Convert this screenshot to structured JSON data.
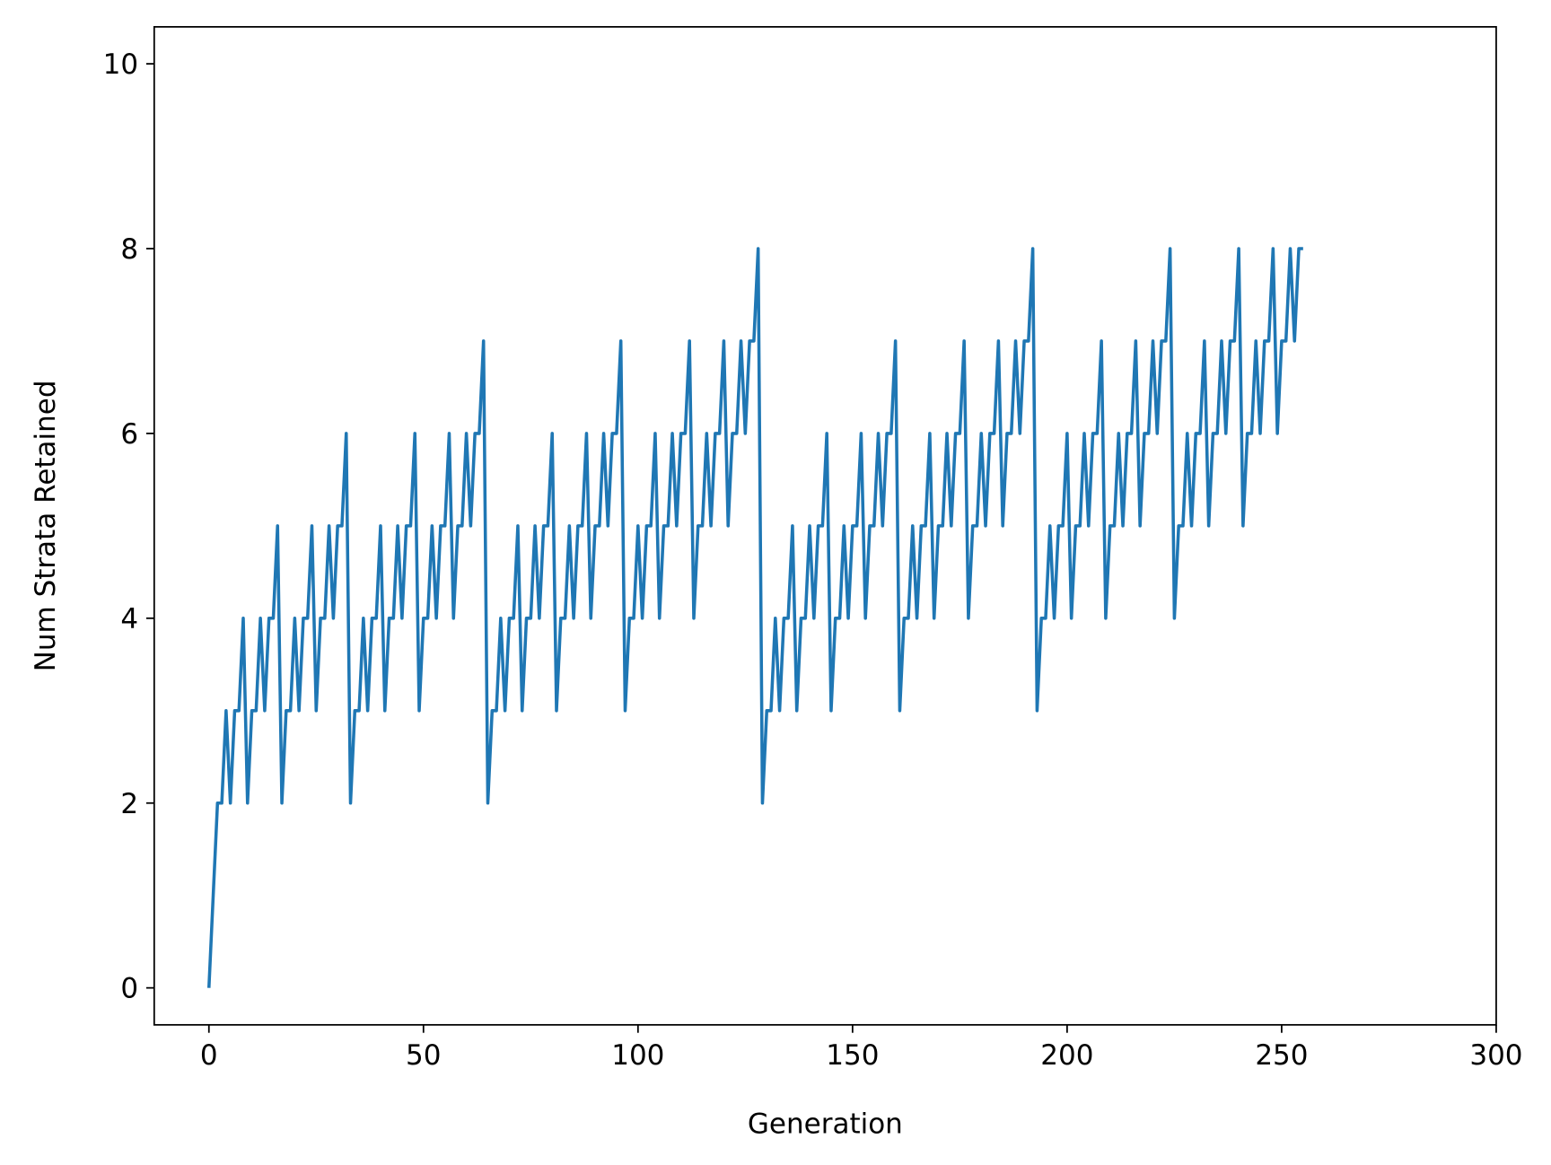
{
  "chart_data": {
    "type": "line",
    "xlabel": "Generation",
    "ylabel": "Num Strata Retained",
    "color": "#1f77b4",
    "xlim": [
      -12.75,
      300
    ],
    "ylim": [
      -0.4,
      10.4
    ],
    "xticks": [
      0,
      50,
      100,
      150,
      200,
      250,
      300
    ],
    "yticks": [
      0,
      2,
      4,
      6,
      8,
      10
    ],
    "x": [
      0,
      1,
      2,
      3,
      4,
      5,
      6,
      7,
      8,
      9,
      10,
      11,
      12,
      13,
      14,
      15,
      16,
      17,
      18,
      19,
      20,
      21,
      22,
      23,
      24,
      25,
      26,
      27,
      28,
      29,
      30,
      31,
      32,
      33,
      34,
      35,
      36,
      37,
      38,
      39,
      40,
      41,
      42,
      43,
      44,
      45,
      46,
      47,
      48,
      49,
      50,
      51,
      52,
      53,
      54,
      55,
      56,
      57,
      58,
      59,
      60,
      61,
      62,
      63,
      64,
      65,
      66,
      67,
      68,
      69,
      70,
      71,
      72,
      73,
      74,
      75,
      76,
      77,
      78,
      79,
      80,
      81,
      82,
      83,
      84,
      85,
      86,
      87,
      88,
      89,
      90,
      91,
      92,
      93,
      94,
      95,
      96,
      97,
      98,
      99,
      100,
      101,
      102,
      103,
      104,
      105,
      106,
      107,
      108,
      109,
      110,
      111,
      112,
      113,
      114,
      115,
      116,
      117,
      118,
      119,
      120,
      121,
      122,
      123,
      124,
      125,
      126,
      127,
      128,
      129,
      130,
      131,
      132,
      133,
      134,
      135,
      136,
      137,
      138,
      139,
      140,
      141,
      142,
      143,
      144,
      145,
      146,
      147,
      148,
      149,
      150,
      151,
      152,
      153,
      154,
      155,
      156,
      157,
      158,
      159,
      160,
      161,
      162,
      163,
      164,
      165,
      166,
      167,
      168,
      169,
      170,
      171,
      172,
      173,
      174,
      175,
      176,
      177,
      178,
      179,
      180,
      181,
      182,
      183,
      184,
      185,
      186,
      187,
      188,
      189,
      190,
      191,
      192,
      193,
      194,
      195,
      196,
      197,
      198,
      199,
      200,
      201,
      202,
      203,
      204,
      205,
      206,
      207,
      208,
      209,
      210,
      211,
      212,
      213,
      214,
      215,
      216,
      217,
      218,
      219,
      220,
      221,
      222,
      223,
      224,
      225,
      226,
      227,
      228,
      229,
      230,
      231,
      232,
      233,
      234,
      235,
      236,
      237,
      238,
      239,
      240,
      241,
      242,
      243,
      244,
      245,
      246,
      247,
      248,
      249,
      250,
      251,
      252,
      253,
      254,
      255
    ],
    "values": [
      0,
      1,
      2,
      2,
      3,
      2,
      3,
      3,
      4,
      2,
      3,
      3,
      4,
      3,
      4,
      4,
      5,
      2,
      3,
      3,
      4,
      3,
      4,
      4,
      5,
      3,
      4,
      4,
      5,
      4,
      5,
      5,
      6,
      2,
      3,
      3,
      4,
      3,
      4,
      4,
      5,
      3,
      4,
      4,
      5,
      4,
      5,
      5,
      6,
      3,
      4,
      4,
      5,
      4,
      5,
      5,
      6,
      4,
      5,
      5,
      6,
      5,
      6,
      6,
      7,
      2,
      3,
      3,
      4,
      3,
      4,
      4,
      5,
      3,
      4,
      4,
      5,
      4,
      5,
      5,
      6,
      3,
      4,
      4,
      5,
      4,
      5,
      5,
      6,
      4,
      5,
      5,
      6,
      5,
      6,
      6,
      7,
      3,
      4,
      4,
      5,
      4,
      5,
      5,
      6,
      4,
      5,
      5,
      6,
      5,
      6,
      6,
      7,
      4,
      5,
      5,
      6,
      5,
      6,
      6,
      7,
      5,
      6,
      6,
      7,
      6,
      7,
      7,
      8,
      2,
      3,
      3,
      4,
      3,
      4,
      4,
      5,
      3,
      4,
      4,
      5,
      4,
      5,
      5,
      6,
      3,
      4,
      4,
      5,
      4,
      5,
      5,
      6,
      4,
      5,
      5,
      6,
      5,
      6,
      6,
      7,
      3,
      4,
      4,
      5,
      4,
      5,
      5,
      6,
      4,
      5,
      5,
      6,
      5,
      6,
      6,
      7,
      4,
      5,
      5,
      6,
      5,
      6,
      6,
      7,
      5,
      6,
      6,
      7,
      6,
      7,
      7,
      8,
      3,
      4,
      4,
      5,
      4,
      5,
      5,
      6,
      4,
      5,
      5,
      6,
      5,
      6,
      6,
      7,
      4,
      5,
      5,
      6,
      5,
      6,
      6,
      7,
      5,
      6,
      6,
      7,
      6,
      7,
      7,
      8,
      4,
      5,
      5,
      6,
      5,
      6,
      6,
      7,
      5,
      6,
      6,
      7,
      6,
      7,
      7,
      8,
      5,
      6,
      6,
      7,
      6,
      7,
      7,
      8,
      6,
      7,
      7,
      8,
      7,
      8,
      8
    ]
  }
}
